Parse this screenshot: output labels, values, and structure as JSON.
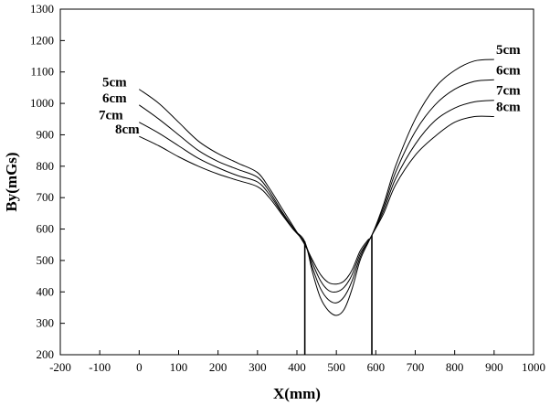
{
  "chart_data": {
    "type": "line",
    "title": "",
    "xlabel": "X(mm)",
    "ylabel": "By(mGs)",
    "xlim": [
      -200,
      1000
    ],
    "ylim": [
      200,
      1300
    ],
    "xticks": [
      -200,
      -100,
      0,
      100,
      200,
      300,
      400,
      500,
      600,
      700,
      800,
      900,
      1000
    ],
    "yticks": [
      200,
      300,
      400,
      500,
      600,
      700,
      800,
      900,
      1000,
      1100,
      1200,
      1300
    ],
    "grid": false,
    "legend": "none",
    "series_color": "#000000",
    "vertical_lines": [
      {
        "x": 420,
        "y_top": 560
      },
      {
        "x": 590,
        "y_top": 580
      }
    ],
    "series": [
      {
        "name": "5cm",
        "x": [
          0,
          50,
          100,
          150,
          200,
          250,
          300,
          330,
          360,
          390,
          420,
          440,
          460,
          480,
          500,
          520,
          540,
          560,
          580,
          590,
          620,
          650,
          700,
          750,
          800,
          850,
          900
        ],
        "y": [
          1045,
          1000,
          940,
          880,
          840,
          810,
          780,
          730,
          670,
          610,
          550,
          500,
          455,
          430,
          425,
          435,
          470,
          530,
          565,
          580,
          680,
          800,
          950,
          1050,
          1105,
          1135,
          1140
        ]
      },
      {
        "name": "6cm",
        "x": [
          0,
          50,
          100,
          150,
          200,
          250,
          300,
          330,
          360,
          390,
          420,
          440,
          460,
          480,
          500,
          520,
          540,
          560,
          580,
          590,
          620,
          650,
          700,
          750,
          800,
          850,
          900
        ],
        "y": [
          995,
          950,
          900,
          850,
          815,
          790,
          765,
          720,
          660,
          605,
          555,
          490,
          435,
          405,
          400,
          415,
          455,
          520,
          560,
          580,
          670,
          780,
          910,
          995,
          1045,
          1070,
          1075
        ]
      },
      {
        "name": "7cm",
        "x": [
          0,
          50,
          100,
          150,
          200,
          250,
          300,
          330,
          360,
          390,
          420,
          440,
          460,
          480,
          500,
          520,
          540,
          560,
          580,
          590,
          620,
          650,
          700,
          750,
          800,
          850,
          900
        ],
        "y": [
          940,
          905,
          865,
          825,
          795,
          770,
          750,
          710,
          655,
          600,
          555,
          475,
          410,
          375,
          365,
          385,
          435,
          510,
          560,
          580,
          660,
          760,
          870,
          945,
          985,
          1005,
          1010
        ]
      },
      {
        "name": "8cm",
        "x": [
          0,
          50,
          100,
          150,
          200,
          250,
          300,
          330,
          360,
          390,
          420,
          440,
          460,
          480,
          500,
          520,
          540,
          560,
          580,
          590,
          620,
          650,
          700,
          750,
          800,
          850,
          900
        ],
        "y": [
          895,
          865,
          830,
          800,
          775,
          755,
          735,
          700,
          650,
          600,
          560,
          460,
          380,
          340,
          325,
          345,
          410,
          500,
          555,
          580,
          650,
          740,
          835,
          895,
          940,
          958,
          958
        ]
      }
    ]
  }
}
